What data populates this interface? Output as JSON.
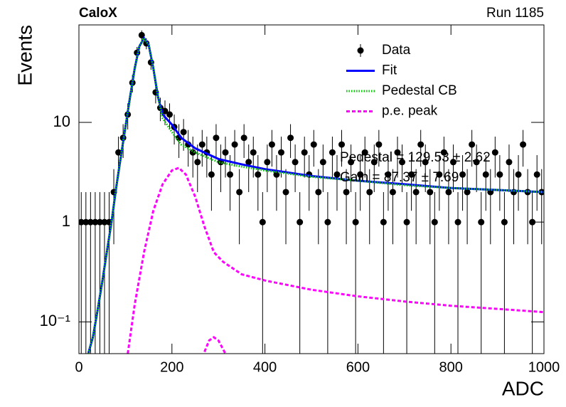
{
  "chart_data": {
    "type": "line",
    "title": "CaloX",
    "subtitle": "Run 1185",
    "x_label": "ADC",
    "y_label": "Events",
    "annotations": [
      "Pedestal = 129.53 ± 2.62",
      "Gain = 87.37 ± 7.69"
    ],
    "xlim": [
      0,
      1000
    ],
    "xticks": [
      0,
      200,
      400,
      600,
      800,
      1000
    ],
    "ylim": [
      0.048,
      95
    ],
    "yticks": [
      {
        "value": 0.1,
        "label": "10⁻¹"
      },
      1,
      10
    ],
    "log_y": true,
    "grid": false,
    "legend": "upper right",
    "series": [
      {
        "name": "Data",
        "kind": "errorbar",
        "color": "#000000",
        "x": [
          5,
          15,
          25,
          35,
          45,
          55,
          65,
          75,
          85,
          95,
          105,
          115,
          125,
          135,
          145,
          155,
          165,
          175,
          185,
          195,
          205,
          215,
          225,
          235,
          245,
          255,
          265,
          275,
          285,
          295,
          305,
          315,
          325,
          335,
          345,
          355,
          365,
          375,
          385,
          395,
          405,
          415,
          425,
          435,
          445,
          455,
          465,
          475,
          485,
          495,
          505,
          515,
          525,
          535,
          545,
          555,
          565,
          575,
          585,
          595,
          605,
          615,
          625,
          635,
          645,
          655,
          665,
          675,
          685,
          695,
          705,
          715,
          725,
          735,
          745,
          755,
          765,
          775,
          785,
          795,
          805,
          815,
          825,
          835,
          845,
          855,
          865,
          875,
          885,
          895,
          905,
          915,
          925,
          935,
          945,
          955,
          965,
          975,
          985,
          995
        ],
        "values": [
          1,
          1,
          1,
          1,
          1,
          1,
          1,
          2,
          5,
          7,
          12,
          25,
          50,
          75,
          62,
          40,
          20,
          14,
          13,
          12,
          9,
          7,
          8,
          6,
          5,
          4,
          6,
          5,
          3,
          7,
          4,
          5,
          3,
          6,
          2,
          7,
          4,
          5,
          3,
          1,
          4,
          6,
          3,
          5,
          2,
          7,
          4,
          1,
          5,
          3,
          6,
          2,
          4,
          1,
          5,
          3,
          6,
          2,
          4,
          1,
          3,
          5,
          2,
          4,
          6,
          1,
          3,
          2,
          5,
          4,
          1,
          3,
          2,
          6,
          4,
          2,
          1,
          3,
          5,
          2,
          4,
          1,
          3,
          2,
          6,
          4,
          1,
          3,
          2,
          5,
          3,
          1,
          4,
          2,
          3,
          6,
          2,
          1,
          3,
          2
        ],
        "errors": [
          1,
          1,
          1,
          1,
          1,
          1,
          1,
          1.4,
          2.2,
          2.6,
          3.5,
          5,
          7.1,
          8.7,
          7.9,
          6.3,
          4.5,
          3.7,
          3.6,
          3.5,
          3,
          2.6,
          2.8,
          2.4,
          2.2,
          2,
          2.4,
          2.2,
          1.7,
          2.6,
          2,
          2.2,
          1.7,
          2.4,
          1.4,
          2.6,
          2,
          2.2,
          1.7,
          1,
          2,
          2.4,
          1.7,
          2.2,
          1.4,
          2.6,
          2,
          1,
          2.2,
          1.7,
          2.4,
          1.4,
          2,
          1,
          2.2,
          1.7,
          2.4,
          1.4,
          2,
          1,
          1.7,
          2.2,
          1.4,
          2,
          2.4,
          1,
          1.7,
          1.4,
          2.2,
          2,
          1,
          1.7,
          1.4,
          2.4,
          2,
          1.4,
          1,
          1.7,
          2.2,
          1.4,
          2,
          1,
          1.7,
          1.4,
          2.4,
          2,
          1,
          1.7,
          1.4,
          2.2,
          1.7,
          1,
          2,
          1.4,
          1.7,
          2.4,
          1.4,
          1,
          1.7,
          1.4
        ]
      },
      {
        "name": "Fit",
        "kind": "solid",
        "color": "#0000ff",
        "x": [
          20,
          30,
          40,
          50,
          60,
          70,
          80,
          90,
          100,
          110,
          120,
          130,
          140,
          150,
          160,
          170,
          180,
          200,
          220,
          250,
          300,
          350,
          400,
          500,
          600,
          700,
          800,
          900,
          1000
        ],
        "values": [
          0.048,
          0.07,
          0.13,
          0.25,
          0.5,
          1.0,
          2.2,
          4.5,
          9,
          18,
          35,
          58,
          70,
          60,
          35,
          18,
          12,
          9.5,
          7,
          5.5,
          4.3,
          3.8,
          3.4,
          2.9,
          2.6,
          2.4,
          2.2,
          2.1,
          2.0
        ]
      },
      {
        "name": "Pedestal CB",
        "kind": "dotted",
        "color": "#00cc00",
        "x": [
          20,
          30,
          40,
          50,
          60,
          70,
          80,
          90,
          100,
          110,
          120,
          130,
          140,
          150,
          160,
          170,
          180,
          200,
          220,
          250,
          300,
          350,
          400,
          500,
          600,
          700,
          800,
          900,
          1000
        ],
        "values": [
          0.048,
          0.07,
          0.13,
          0.25,
          0.5,
          1.0,
          2.2,
          4.5,
          9,
          18,
          35,
          58,
          70,
          60,
          35,
          18,
          11,
          8,
          6,
          5,
          4.0,
          3.6,
          3.3,
          2.85,
          2.6,
          2.35,
          2.2,
          2.1,
          2.0
        ]
      },
      {
        "name": "p.e. peak",
        "kind": "dashed",
        "color": "#ff00ff",
        "x": [
          105,
          120,
          140,
          160,
          180,
          200,
          215,
          230,
          250,
          270,
          290,
          310,
          350,
          400,
          500,
          600,
          700,
          800,
          900,
          1000,
          null,
          270,
          280,
          290,
          300,
          315
        ],
        "values": [
          0.048,
          0.15,
          0.5,
          1.3,
          2.4,
          3.3,
          3.5,
          3.0,
          1.8,
          0.9,
          0.5,
          0.4,
          0.3,
          0.26,
          0.21,
          0.18,
          0.16,
          0.145,
          0.135,
          0.125,
          null,
          0.05,
          0.065,
          0.07,
          0.065,
          0.048
        ]
      }
    ]
  }
}
